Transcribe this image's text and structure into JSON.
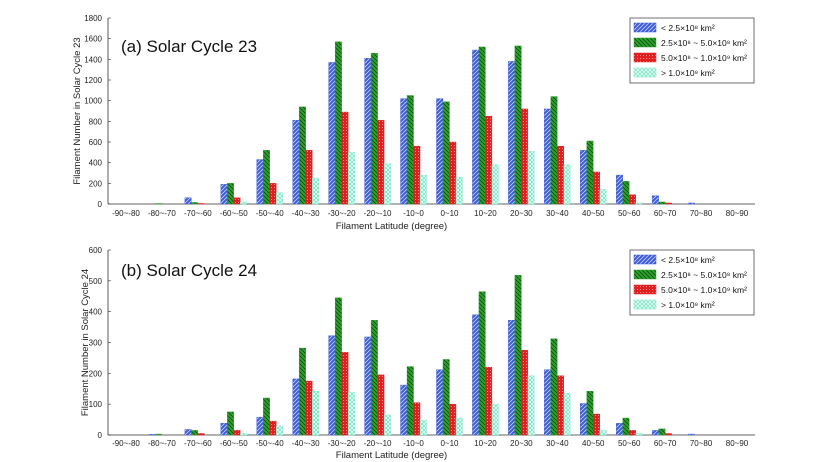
{
  "chart_data": [
    {
      "type": "bar",
      "title": "(a) Solar Cycle 23",
      "xlabel": "Filament Latitude (degree)",
      "ylabel": "Filament Number in Solar Cycle 23",
      "ylim": [
        0,
        1800
      ],
      "yticks": [
        0,
        200,
        400,
        600,
        800,
        1000,
        1200,
        1400,
        1600,
        1800
      ],
      "categories": [
        "-90~-80",
        "-80~-70",
        "-70~-60",
        "-60~-50",
        "-50~-40",
        "-40~-30",
        "-30~-20",
        "-20~-10",
        "-10~0",
        "0~10",
        "10~20",
        "20~30",
        "30~40",
        "40~50",
        "50~60",
        "60~70",
        "70~80",
        "80~90"
      ],
      "legend_position": "top-right",
      "series": [
        {
          "name": "< 2.5×10⁸ km²",
          "color": "#3b5bdb",
          "pattern": "diag-right",
          "values": [
            0,
            0,
            60,
            190,
            430,
            810,
            1370,
            1410,
            1020,
            1020,
            1490,
            1380,
            920,
            520,
            280,
            80,
            10,
            0
          ]
        },
        {
          "name": "2.5×10⁸ ~ 5.0×10⁸ km²",
          "color": "#2ea02e",
          "pattern": "diag-left",
          "values": [
            0,
            5,
            15,
            200,
            520,
            940,
            1570,
            1460,
            1050,
            990,
            1520,
            1530,
            1040,
            610,
            220,
            20,
            0,
            0
          ]
        },
        {
          "name": "5.0×10⁸ ~ 1.0×10⁹ km²",
          "color": "#e02020",
          "pattern": "dots",
          "values": [
            0,
            0,
            5,
            60,
            200,
            520,
            890,
            810,
            560,
            600,
            850,
            920,
            560,
            310,
            90,
            10,
            0,
            0
          ]
        },
        {
          "name": "> 1.0×10⁹ km²",
          "color": "#7be8c8",
          "pattern": "cross",
          "values": [
            0,
            0,
            0,
            20,
            110,
            250,
            500,
            390,
            280,
            260,
            380,
            510,
            380,
            140,
            10,
            0,
            0,
            0
          ]
        }
      ]
    },
    {
      "type": "bar",
      "title": "(b) Solar Cycle 24",
      "xlabel": "Filament Latitude (degree)",
      "ylabel": "Filament Number in Solar Cycle 24",
      "ylim": [
        0,
        600
      ],
      "yticks": [
        0,
        100,
        200,
        300,
        400,
        500,
        600
      ],
      "categories": [
        "-90~-80",
        "-80~-70",
        "-70~-60",
        "-60~-50",
        "-50~-40",
        "-40~-30",
        "-30~-20",
        "-20~-10",
        "-10~0",
        "0~10",
        "10~20",
        "20~30",
        "30~40",
        "40~50",
        "50~60",
        "60~70",
        "70~80",
        "80~90"
      ],
      "legend_position": "top-right",
      "series": [
        {
          "name": "< 2.5×10⁸ km²",
          "color": "#3b5bdb",
          "pattern": "diag-right",
          "values": [
            0,
            2,
            18,
            38,
            58,
            182,
            322,
            318,
            162,
            212,
            390,
            372,
            212,
            102,
            38,
            15,
            3,
            0
          ]
        },
        {
          "name": "2.5×10⁸ ~ 5.0×10⁸ km²",
          "color": "#2ea02e",
          "pattern": "diag-left",
          "values": [
            0,
            3,
            15,
            75,
            120,
            282,
            445,
            372,
            222,
            245,
            465,
            518,
            312,
            142,
            55,
            20,
            0,
            0
          ]
        },
        {
          "name": "5.0×10⁸ ~ 1.0×10⁹ km²",
          "color": "#e02020",
          "pattern": "dots",
          "values": [
            0,
            0,
            5,
            15,
            45,
            175,
            268,
            195,
            105,
            100,
            220,
            275,
            192,
            68,
            15,
            5,
            0,
            0
          ]
        },
        {
          "name": "1.0×10⁹ km²",
          "display_name": "> 1.0×10⁹ km²",
          "color": "#7be8c8",
          "pattern": "cross",
          "values": [
            0,
            0,
            0,
            5,
            30,
            142,
            138,
            65,
            48,
            55,
            100,
            192,
            135,
            15,
            5,
            0,
            0,
            0
          ]
        }
      ]
    }
  ]
}
